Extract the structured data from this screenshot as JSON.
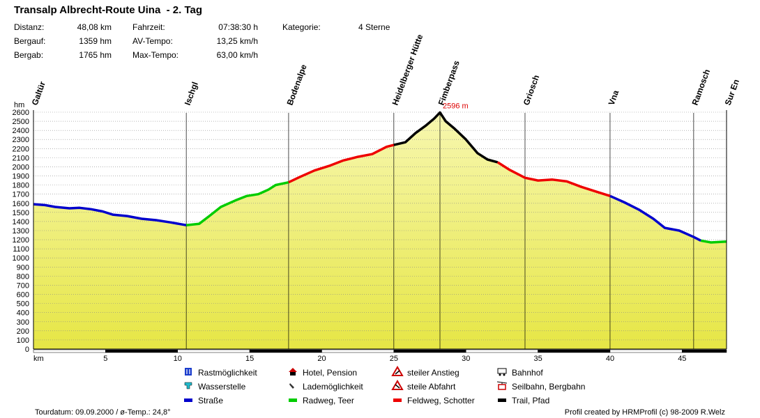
{
  "header": {
    "title": "Transalp Albrecht-Route Uina  - 2. Tag",
    "stats": [
      {
        "label": "Distanz:",
        "value": "48,08 km"
      },
      {
        "label": "Bergauf:",
        "value": "1359 hm"
      },
      {
        "label": "Bergab:",
        "value": "1765 hm"
      },
      {
        "label": "Fahrzeit:",
        "value": "07:38:30 h"
      },
      {
        "label": "AV-Tempo:",
        "value": "13,25 km/h"
      },
      {
        "label": "Max-Tempo:",
        "value": "63,00 km/h"
      },
      {
        "label": "Kategorie:",
        "value": "4 Sterne"
      }
    ]
  },
  "chart_data": {
    "type": "area",
    "ylabel": "hm",
    "xlabel": "km",
    "ylim": [
      0,
      2600
    ],
    "xlim": [
      0,
      48.08
    ],
    "yticks": [
      0,
      100,
      200,
      300,
      400,
      500,
      600,
      700,
      800,
      900,
      1000,
      1100,
      1200,
      1300,
      1400,
      1500,
      1600,
      1700,
      1800,
      1900,
      2000,
      2100,
      2200,
      2300,
      2400,
      2500,
      2600
    ],
    "xticks": [
      5,
      10,
      15,
      20,
      25,
      30,
      35,
      40,
      45
    ],
    "grid": true,
    "peak_label": "2596 m",
    "peak": {
      "x": 28.2,
      "y": 2596
    },
    "waypoints": [
      {
        "name": "Galtür",
        "x": 0.0
      },
      {
        "name": "Ischgl",
        "x": 10.6
      },
      {
        "name": "Bodenalpe",
        "x": 17.7
      },
      {
        "name": "Heidelberger Hütte",
        "x": 25.0
      },
      {
        "name": "Fimberpass",
        "x": 28.2
      },
      {
        "name": "Griosch",
        "x": 34.1
      },
      {
        "name": "Vna",
        "x": 40.0
      },
      {
        "name": "Ramosch",
        "x": 45.8
      },
      {
        "name": "Sur En",
        "x": 48.08
      }
    ],
    "surface_bands": [
      {
        "from": 0,
        "to": 5,
        "type": "road"
      },
      {
        "from": 5,
        "to": 10,
        "type": "none"
      },
      {
        "from": 10,
        "to": 15,
        "type": "road"
      },
      {
        "from": 15,
        "to": 20,
        "type": "none"
      },
      {
        "from": 20,
        "to": 25,
        "type": "road"
      },
      {
        "from": 25,
        "to": 30,
        "type": "none"
      },
      {
        "from": 30,
        "to": 35,
        "type": "road"
      },
      {
        "from": 35,
        "to": 40,
        "type": "none"
      },
      {
        "from": 40,
        "to": 45,
        "type": "road"
      },
      {
        "from": 45,
        "to": 48.08,
        "type": "none"
      }
    ],
    "series": [
      {
        "surface": "Straße",
        "color": "#0000cc",
        "points": [
          [
            0,
            1590
          ],
          [
            0.8,
            1580
          ],
          [
            1.5,
            1560
          ],
          [
            2.5,
            1545
          ],
          [
            3.2,
            1550
          ],
          [
            4.0,
            1535
          ],
          [
            4.8,
            1510
          ],
          [
            5.5,
            1475
          ],
          [
            6.5,
            1460
          ],
          [
            7.5,
            1430
          ],
          [
            8.5,
            1415
          ],
          [
            9.5,
            1390
          ],
          [
            10.6,
            1360
          ]
        ]
      },
      {
        "surface": "Radweg, Teer",
        "color": "#00cc00",
        "points": [
          [
            10.6,
            1360
          ],
          [
            11.5,
            1375
          ],
          [
            12.2,
            1460
          ],
          [
            13.0,
            1560
          ],
          [
            14.0,
            1630
          ],
          [
            14.8,
            1680
          ],
          [
            15.6,
            1700
          ],
          [
            16.3,
            1750
          ],
          [
            16.8,
            1800
          ],
          [
            17.7,
            1830
          ]
        ]
      },
      {
        "surface": "Feldweg, Schotter",
        "color": "#ee0000",
        "points": [
          [
            17.7,
            1830
          ],
          [
            18.5,
            1890
          ],
          [
            19.5,
            1960
          ],
          [
            20.5,
            2010
          ],
          [
            21.5,
            2070
          ],
          [
            22.5,
            2110
          ],
          [
            23.5,
            2140
          ],
          [
            24.5,
            2220
          ],
          [
            25.0,
            2240
          ]
        ]
      },
      {
        "surface": "Trail, Pfad",
        "color": "#000000",
        "points": [
          [
            25.0,
            2240
          ],
          [
            25.8,
            2270
          ],
          [
            26.5,
            2370
          ],
          [
            27.2,
            2450
          ],
          [
            27.8,
            2530
          ],
          [
            28.2,
            2596
          ],
          [
            28.6,
            2500
          ],
          [
            29.2,
            2420
          ],
          [
            30.0,
            2300
          ],
          [
            30.8,
            2150
          ],
          [
            31.5,
            2080
          ],
          [
            32.2,
            2050
          ]
        ]
      },
      {
        "surface": "Feldweg, Schotter",
        "color": "#ee0000",
        "points": [
          [
            32.2,
            2050
          ],
          [
            33.0,
            1970
          ],
          [
            34.1,
            1880
          ],
          [
            35.0,
            1850
          ],
          [
            36.0,
            1860
          ],
          [
            37.0,
            1840
          ],
          [
            38.0,
            1780
          ],
          [
            39.0,
            1730
          ],
          [
            40.0,
            1680
          ]
        ]
      },
      {
        "surface": "Straße",
        "color": "#0000cc",
        "points": [
          [
            40.0,
            1680
          ],
          [
            41.0,
            1610
          ],
          [
            42.0,
            1530
          ],
          [
            43.0,
            1430
          ],
          [
            43.8,
            1330
          ],
          [
            44.8,
            1300
          ],
          [
            45.8,
            1230
          ],
          [
            46.3,
            1190
          ]
        ]
      },
      {
        "surface": "Radweg, Teer",
        "color": "#00cc00",
        "points": [
          [
            46.3,
            1190
          ],
          [
            47.0,
            1170
          ],
          [
            48.08,
            1180
          ]
        ]
      }
    ]
  },
  "legend": [
    {
      "icon": "cutlery-icon",
      "label": "Rastmöglichkeit"
    },
    {
      "icon": "water-tap-icon",
      "label": "Wasserstelle"
    },
    {
      "icon": "blue-line-icon",
      "label": "Straße",
      "color": "#0000cc"
    },
    {
      "icon": "hotel-icon",
      "label": "Hotel, Pension"
    },
    {
      "icon": "charging-icon",
      "label": "Lademöglichkeit"
    },
    {
      "icon": "green-line-icon",
      "label": "Radweg, Teer",
      "color": "#00cc00"
    },
    {
      "icon": "steep-climb-icon",
      "label": "steiler Anstieg"
    },
    {
      "icon": "steep-descent-icon",
      "label": "steile Abfahrt"
    },
    {
      "icon": "red-line-icon",
      "label": "Feldweg, Schotter",
      "color": "#ee0000"
    },
    {
      "icon": "train-icon",
      "label": "Bahnhof"
    },
    {
      "icon": "cablecar-icon",
      "label": "Seilbahn, Bergbahn"
    },
    {
      "icon": "black-line-icon",
      "label": "Trail, Pfad",
      "color": "#000000"
    }
  ],
  "footer": {
    "left": "Tourdatum: 09.09.2000  /  ø-Temp.: 24,8°",
    "right": "Profil created by HRMProfil (c) 98-2009 R.Welz"
  },
  "colors": {
    "fill_top": "#f7f7b0",
    "fill_bottom": "#e6e645",
    "grid": "#888888",
    "peak_label": "#dd0000"
  }
}
